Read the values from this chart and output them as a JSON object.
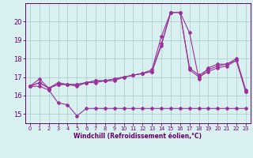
{
  "x": [
    0,
    1,
    2,
    3,
    4,
    5,
    6,
    7,
    8,
    9,
    10,
    11,
    12,
    13,
    14,
    15,
    16,
    17,
    18,
    19,
    20,
    21,
    22,
    23
  ],
  "line1": [
    16.5,
    16.9,
    16.4,
    16.7,
    16.6,
    16.6,
    16.7,
    16.8,
    16.8,
    16.9,
    17.0,
    17.1,
    17.2,
    17.4,
    19.2,
    20.5,
    20.5,
    19.4,
    16.9,
    17.5,
    17.7,
    17.7,
    18.0,
    16.3
  ],
  "line2": [
    16.5,
    16.7,
    16.4,
    16.6,
    16.6,
    16.6,
    16.7,
    16.8,
    16.8,
    16.9,
    17.0,
    17.1,
    17.2,
    17.3,
    18.8,
    20.5,
    20.5,
    17.5,
    17.1,
    17.4,
    17.6,
    17.7,
    17.9,
    16.2
  ],
  "line3": [
    16.5,
    16.7,
    16.4,
    16.6,
    16.6,
    16.5,
    16.7,
    16.7,
    16.8,
    16.8,
    17.0,
    17.1,
    17.2,
    17.3,
    18.7,
    20.5,
    20.5,
    17.4,
    17.0,
    17.3,
    17.5,
    17.6,
    17.9,
    16.2
  ],
  "line4": [
    16.5,
    16.5,
    16.3,
    15.6,
    15.5,
    14.9,
    15.3,
    15.3,
    15.3,
    15.3,
    15.3,
    15.3,
    15.3,
    15.3,
    15.3,
    15.3,
    15.3,
    15.3,
    15.3,
    15.3,
    15.3,
    15.3,
    15.3,
    15.3
  ],
  "line_color": "#993399",
  "bg_color": "#d8f0f0",
  "grid_color": "#b0d0d0",
  "axis_color": "#660066",
  "tick_color": "#660066",
  "xlabel": "Windchill (Refroidissement éolien,°C)",
  "ylim": [
    14.5,
    21.0
  ],
  "xlim": [
    -0.5,
    23.5
  ],
  "yticks": [
    15,
    16,
    17,
    18,
    19,
    20
  ],
  "xticks": [
    0,
    1,
    2,
    3,
    4,
    5,
    6,
    7,
    8,
    9,
    10,
    11,
    12,
    13,
    14,
    15,
    16,
    17,
    18,
    19,
    20,
    21,
    22,
    23
  ],
  "marker_size": 2.0,
  "line_width": 0.8
}
